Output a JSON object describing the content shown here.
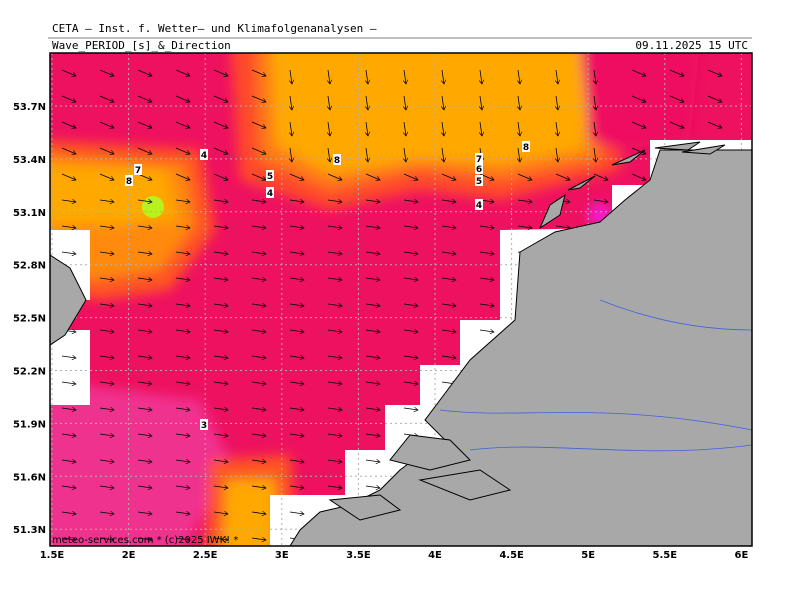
{
  "header": {
    "title": "CETA — Inst. f. Wetter— und Klimafolgenanalysen —",
    "subtitle": "Wave_PERIOD_[s]_&_Direction",
    "datetime": "09.11.2025 15 UTC"
  },
  "map": {
    "lon_ticks": [
      "1.5E",
      "2E",
      "2.5E",
      "3E",
      "3.5E",
      "4E",
      "4.5E",
      "5E",
      "5.5E",
      "6E"
    ],
    "lat_ticks": [
      "53.7N",
      "53.4N",
      "53.1N",
      "52.8N",
      "52.5N",
      "52.2N",
      "51.9N",
      "51.6N",
      "51.3N"
    ],
    "contour_labels": [
      4,
      8,
      7,
      8,
      7,
      6,
      5,
      8,
      5,
      4,
      4,
      3
    ]
  },
  "footer": "meteo-services.com * (c)2025 IWK! *"
}
